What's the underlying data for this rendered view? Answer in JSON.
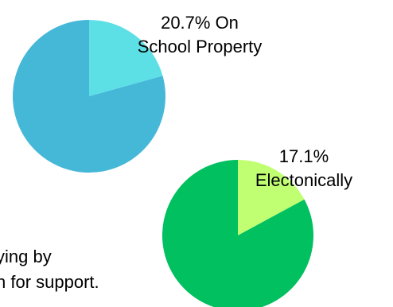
{
  "chart_data": [
    {
      "type": "pie",
      "title": "",
      "slices": [
        {
          "label": "On School Property",
          "value": 20.7,
          "color": "#5ce0e6"
        },
        {
          "label": "",
          "value": 79.3,
          "color": "#45b8d8"
        }
      ],
      "data_label": {
        "line1": "20.7% On",
        "line2": "School Property"
      }
    },
    {
      "type": "pie",
      "title": "",
      "slices": [
        {
          "label": "Electonically",
          "value": 17.1,
          "color": "#c0ff72"
        },
        {
          "label": "",
          "value": 82.9,
          "color": "#00c05f"
        }
      ],
      "data_label": {
        "line1": "17.1%",
        "line2": "Electonically"
      }
    }
  ],
  "text": {
    "line1": "ying by",
    "line2": "n for support."
  }
}
